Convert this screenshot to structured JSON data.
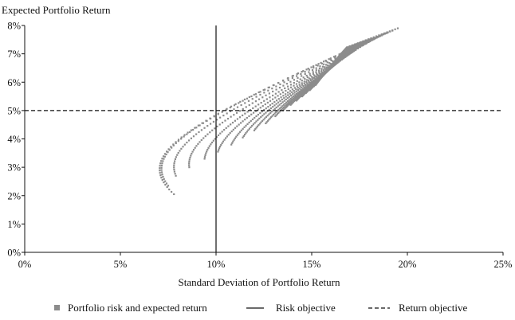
{
  "chart_data": {
    "type": "scatter",
    "title": "",
    "ylabel": "Expected Portfolio Return",
    "xlabel": "Standard Deviation of Portfolio Return",
    "xlim": [
      0,
      25
    ],
    "ylim": [
      0,
      8
    ],
    "x_ticks": [
      0,
      5,
      10,
      15,
      20,
      25
    ],
    "y_ticks": [
      0,
      1,
      2,
      3,
      4,
      5,
      6,
      7,
      8
    ],
    "x_tick_labels": [
      "0%",
      "5%",
      "10%",
      "15%",
      "20%",
      "25%"
    ],
    "y_tick_labels": [
      "0%",
      "1%",
      "2%",
      "3%",
      "4%",
      "5%",
      "6%",
      "7%",
      "8%"
    ],
    "grid": false,
    "risk_objective_x": 10,
    "return_objective_y": 5,
    "frontier": {
      "min_variance_point": [
        6.7,
        2.9
      ],
      "top_point": [
        19.5,
        7.9
      ],
      "cluster_count": 20,
      "ends": [
        [
          7.8,
          2.05
        ],
        [
          7.5,
          2.35
        ],
        [
          7.9,
          2.7
        ],
        [
          8.6,
          3.0
        ],
        [
          9.4,
          3.3
        ],
        [
          10.1,
          3.55
        ],
        [
          10.8,
          3.8
        ],
        [
          11.4,
          4.05
        ],
        [
          12.0,
          4.3
        ],
        [
          12.6,
          4.55
        ],
        [
          13.1,
          4.8
        ],
        [
          13.5,
          5.0
        ],
        [
          13.9,
          5.2
        ],
        [
          14.2,
          5.35
        ],
        [
          14.5,
          5.5
        ],
        [
          14.7,
          5.62
        ],
        [
          14.9,
          5.72
        ],
        [
          15.0,
          5.8
        ],
        [
          15.1,
          5.85
        ],
        [
          15.2,
          5.9
        ]
      ]
    },
    "color": "#8c8c8c",
    "legend": {
      "position": "bottom",
      "items": [
        {
          "label": "Portfolio risk and expected return",
          "style": "marker"
        },
        {
          "label": "Risk objective",
          "style": "solid"
        },
        {
          "label": "Return objective",
          "style": "dashed"
        }
      ]
    }
  }
}
